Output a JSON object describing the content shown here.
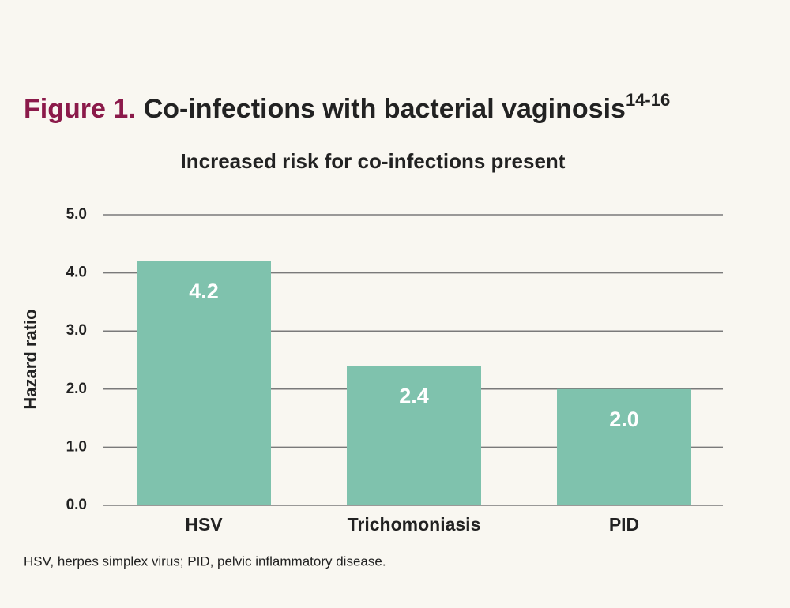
{
  "chart_data": {
    "type": "bar",
    "title_prefix": "Figure 1.",
    "title": "Co-infections with bacterial vaginosis",
    "title_superscript": "14-16",
    "subtitle": "Increased risk for co-infections present",
    "y_label": "Hazard ratio",
    "footnote": "HSV, herpes simplex virus; PID, pelvic inflammatory disease.",
    "categories": [
      "HSV",
      "Trichomoniasis",
      "PID"
    ],
    "values": [
      4.2,
      2.4,
      2.0
    ],
    "value_labels": [
      "4.2",
      "2.4",
      "2.0"
    ],
    "color": "#7fc2ad",
    "ylim": [
      0,
      5
    ],
    "yticks": [
      {
        "value": 0,
        "label": "0.0"
      },
      {
        "value": 1,
        "label": "1.0"
      },
      {
        "value": 2,
        "label": "2.0"
      },
      {
        "value": 3,
        "label": "3.0"
      },
      {
        "value": 4,
        "label": "4.0"
      },
      {
        "value": 5,
        "label": "5.0"
      }
    ],
    "grid": true
  }
}
